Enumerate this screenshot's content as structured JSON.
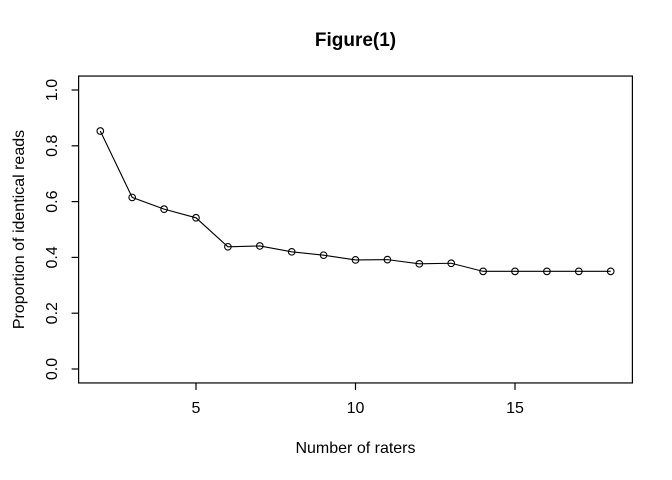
{
  "chart_data": {
    "type": "line",
    "title": "Figure(1)",
    "xlabel": "Number of raters",
    "ylabel": "Proportion of identical reads",
    "x": [
      2,
      3,
      4,
      5,
      6,
      7,
      8,
      9,
      10,
      11,
      12,
      13,
      14,
      15,
      16,
      17,
      18
    ],
    "y": [
      0.853,
      0.615,
      0.573,
      0.542,
      0.438,
      0.441,
      0.42,
      0.408,
      0.391,
      0.392,
      0.377,
      0.379,
      0.35,
      0.35,
      0.35,
      0.35,
      0.35
    ],
    "xticks": [
      "5",
      "10",
      "15"
    ],
    "yticks": [
      "0.0",
      "0.2",
      "0.4",
      "0.6",
      "0.8",
      "1.0"
    ],
    "xlim": [
      1.32,
      18.68
    ],
    "ylim": [
      -0.05,
      1.05
    ],
    "marker": "open-circle",
    "line_color": "#000000",
    "axis_color": "#000000",
    "text_color": "#000000",
    "background_color": "#ffffff",
    "grid": false,
    "legend": false
  }
}
